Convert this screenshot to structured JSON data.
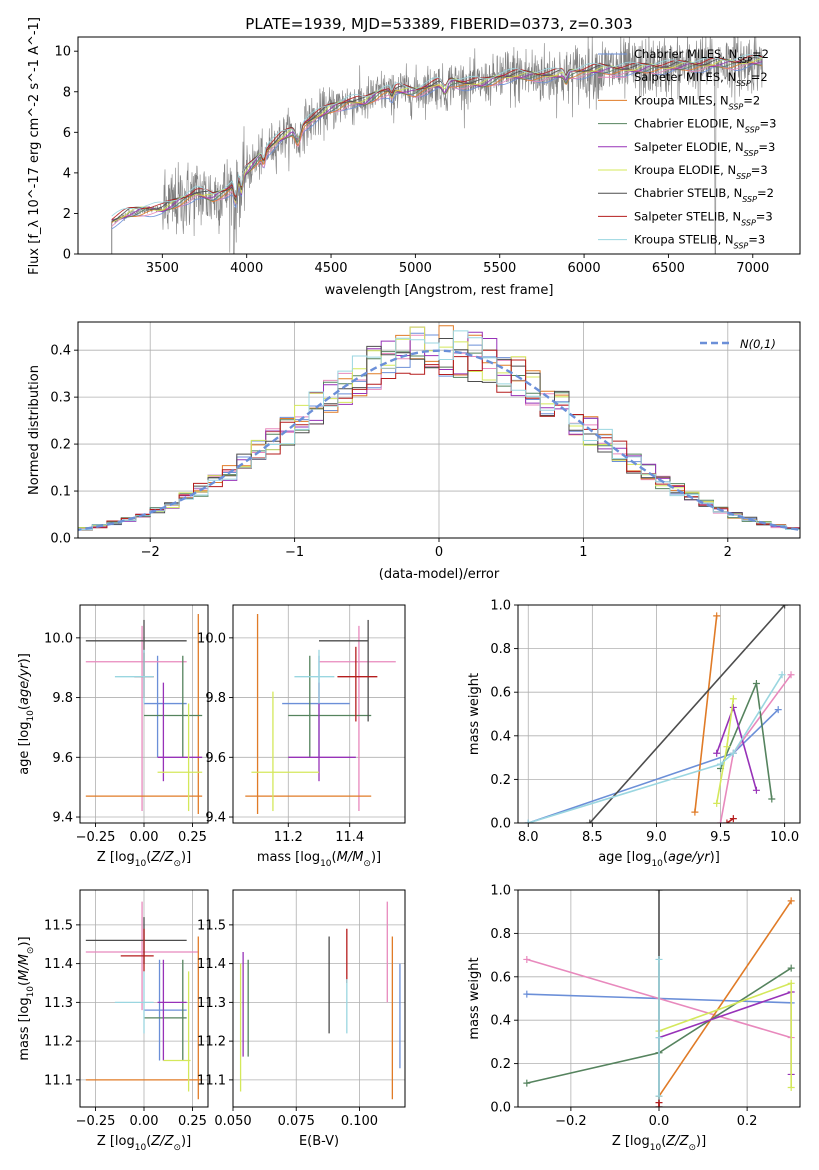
{
  "palette": {
    "chabrier_miles": "#6b8fd8",
    "salpeter_miles": "#e889bd",
    "kroupa_miles": "#e07b27",
    "chabrier_elodie": "#55835e",
    "salpeter_elodie": "#9732b8",
    "kroupa_elodie": "#d4e85b",
    "chabrier_stelib": "#4d4d4d",
    "salpeter_stelib": "#b51d1d",
    "kroupa_stelib": "#9ad6e0",
    "grid": "#b0b0b0",
    "spectrum": "#808080"
  },
  "chart_data": [
    {
      "id": "spectrum",
      "type": "line",
      "title": "PLATE=1939, MJD=53389, FIBERID=0373, z=0.303",
      "xlabel": "wavelength [Angstrom, rest frame]",
      "ylabel": "Flux [f_λ 10^-17 erg cm^-2 s^-1 A^-1]",
      "xlim": [
        3000,
        7280
      ],
      "ylim": [
        0,
        10.7
      ],
      "xticks": [
        3500,
        4000,
        4500,
        5000,
        5500,
        6000,
        6500,
        7000
      ],
      "yticks": [
        0,
        2,
        4,
        6,
        8,
        10
      ],
      "grid": false,
      "legend_position": "top-right",
      "legend": [
        {
          "label": "Chabrier MILES, N",
          "sub": "SSP",
          "suffix": "=2"
        },
        {
          "label": "Salpeter MILES, N",
          "sub": "SSP",
          "suffix": "=2"
        },
        {
          "label": "Kroupa MILES, N",
          "sub": "SSP",
          "suffix": "=2"
        },
        {
          "label": "Chabrier ELODIE, N",
          "sub": "SSP",
          "suffix": "=3"
        },
        {
          "label": "Salpeter ELODIE, N",
          "sub": "SSP",
          "suffix": "=3"
        },
        {
          "label": "Kroupa ELODIE, N",
          "sub": "SSP",
          "suffix": "=3"
        },
        {
          "label": "Chabrier STELIB, N",
          "sub": "SSP",
          "suffix": "=2"
        },
        {
          "label": "Salpeter STELIB, N",
          "sub": "SSP",
          "suffix": "=3"
        },
        {
          "label": "Kroupa STELIB, N",
          "sub": "SSP",
          "suffix": "=3"
        }
      ],
      "continuum_knots": {
        "x": [
          3200,
          3300,
          3400,
          3500,
          3600,
          3700,
          3800,
          3900,
          4000,
          4100,
          4200,
          4300,
          4400,
          4500,
          4600,
          4700,
          4800,
          4900,
          5000,
          5100,
          5200,
          5300,
          5400,
          5500,
          5600,
          5700,
          5800,
          5900,
          6000,
          6100,
          6200,
          6300,
          6400,
          6500,
          6600,
          6700,
          6800,
          6900,
          7000,
          7060
        ],
        "y": [
          1.6,
          2.0,
          2.2,
          2.2,
          2.6,
          3.0,
          2.8,
          3.2,
          4.1,
          5.0,
          5.7,
          6.2,
          6.7,
          7.2,
          7.5,
          7.5,
          8.0,
          8.1,
          8.0,
          8.3,
          8.5,
          8.4,
          8.4,
          8.7,
          8.8,
          8.8,
          8.8,
          8.9,
          9.0,
          9.1,
          9.1,
          9.1,
          9.2,
          9.2,
          9.3,
          9.3,
          9.4,
          9.4,
          9.5,
          9.5
        ]
      }
    },
    {
      "id": "residuals",
      "type": "histogram",
      "xlabel": "(data-model)/error",
      "ylabel": "Normed distribution",
      "xlim": [
        -2.5,
        2.5
      ],
      "ylim": [
        0,
        0.46
      ],
      "xticks": [
        -2,
        -1,
        0,
        1,
        2
      ],
      "yticks": [
        0.0,
        0.1,
        0.2,
        0.3,
        0.4
      ],
      "grid": true,
      "bin_width": 0.1,
      "legend_position": "top-right",
      "reference_curve": {
        "label": "N(0,1)",
        "type": "gaussian",
        "mean": 0,
        "sigma": 1
      }
    },
    {
      "id": "age_vs_Z",
      "type": "errorbar",
      "xlabel": "Z [log10(Z/Z⊙)]",
      "ylabel": "age [log10(age/yr)]",
      "xlim": [
        -0.33,
        0.33
      ],
      "ylim": [
        9.38,
        10.11
      ],
      "xticks": [
        -0.25,
        0.0,
        0.25
      ],
      "xticklabels": [
        "−0.25",
        "0.00",
        "0.25"
      ],
      "yticks": [
        9.4,
        9.6,
        9.8,
        10.0
      ],
      "grid": true,
      "points": [
        {
          "model": "chabrier_miles",
          "x": 0.07,
          "xlo": 0.0,
          "xhi": 0.22,
          "y": 9.78,
          "ylo": 9.6,
          "yhi": 9.94
        },
        {
          "model": "salpeter_miles",
          "x": -0.01,
          "xlo": -0.3,
          "xhi": 0.22,
          "y": 9.92,
          "ylo": 9.42,
          "yhi": 10.04
        },
        {
          "model": "kroupa_miles",
          "x": 0.28,
          "xlo": -0.3,
          "xhi": 0.3,
          "y": 9.47,
          "ylo": 9.41,
          "yhi": 10.08
        },
        {
          "model": "chabrier_elodie",
          "x": 0.2,
          "xlo": 0.0,
          "xhi": 0.3,
          "y": 9.74,
          "ylo": 9.6,
          "yhi": 9.94
        },
        {
          "model": "salpeter_elodie",
          "x": 0.1,
          "xlo": 0.07,
          "xhi": 0.3,
          "y": 9.6,
          "ylo": 9.52,
          "yhi": 9.85
        },
        {
          "model": "kroupa_elodie",
          "x": 0.23,
          "xlo": 0.07,
          "xhi": 0.3,
          "y": 9.55,
          "ylo": 9.42,
          "yhi": 9.78
        },
        {
          "model": "chabrier_stelib",
          "x": 0.0,
          "xlo": -0.3,
          "xhi": 0.22,
          "y": 9.99,
          "ylo": 9.87,
          "yhi": 10.06
        },
        {
          "model": "salpeter_stelib",
          "x": 0.0,
          "xlo": -0.05,
          "xhi": 0.05,
          "y": 9.87,
          "ylo": 9.8,
          "yhi": 9.95
        },
        {
          "model": "kroupa_stelib",
          "x": 0.0,
          "xlo": -0.15,
          "xhi": 0.05,
          "y": 9.87,
          "ylo": 9.78,
          "yhi": 9.96
        }
      ]
    },
    {
      "id": "age_vs_mass",
      "type": "errorbar",
      "xlabel": "mass [log10(M/M⊙)]",
      "xlim": [
        11.02,
        11.58
      ],
      "ylim": [
        9.38,
        10.11
      ],
      "xticks": [
        11.2,
        11.4
      ],
      "yticks": [
        9.4,
        9.6,
        9.8,
        10.0
      ],
      "grid": true,
      "points": [
        {
          "model": "chabrier_miles",
          "x": 11.3,
          "xlo": 11.18,
          "xhi": 11.4,
          "y": 9.78,
          "ylo": 9.6,
          "yhi": 9.94
        },
        {
          "model": "salpeter_miles",
          "x": 11.43,
          "xlo": 11.3,
          "xhi": 11.55,
          "y": 9.92,
          "ylo": 9.42,
          "yhi": 10.04
        },
        {
          "model": "kroupa_miles",
          "x": 11.1,
          "xlo": 11.06,
          "xhi": 11.47,
          "y": 9.47,
          "ylo": 9.41,
          "yhi": 10.08
        },
        {
          "model": "chabrier_elodie",
          "x": 11.27,
          "xlo": 11.2,
          "xhi": 11.47,
          "y": 9.74,
          "ylo": 9.6,
          "yhi": 9.94
        },
        {
          "model": "salpeter_elodie",
          "x": 11.3,
          "xlo": 11.2,
          "xhi": 11.42,
          "y": 9.6,
          "ylo": 9.52,
          "yhi": 9.85
        },
        {
          "model": "kroupa_elodie",
          "x": 11.15,
          "xlo": 11.08,
          "xhi": 11.3,
          "y": 9.55,
          "ylo": 9.42,
          "yhi": 9.82
        },
        {
          "model": "chabrier_stelib",
          "x": 11.46,
          "xlo": 11.3,
          "xhi": 11.46,
          "y": 9.99,
          "ylo": 9.72,
          "yhi": 10.06
        },
        {
          "model": "salpeter_stelib",
          "x": 11.42,
          "xlo": 11.36,
          "xhi": 11.49,
          "y": 9.87,
          "ylo": 9.72,
          "yhi": 9.97
        },
        {
          "model": "kroupa_stelib",
          "x": 11.3,
          "xlo": 11.22,
          "xhi": 11.35,
          "y": 9.87,
          "ylo": 9.78,
          "yhi": 9.96
        }
      ]
    },
    {
      "id": "massweight_vs_age",
      "type": "line",
      "xlabel": "age [log10(age/yr)]",
      "ylabel": "mass weight",
      "xlim": [
        7.92,
        10.12
      ],
      "ylim": [
        0.0,
        1.0
      ],
      "xticks": [
        8.0,
        8.5,
        9.0,
        9.5,
        10.0
      ],
      "yticks": [
        0.0,
        0.2,
        0.4,
        0.6,
        0.8,
        1.0
      ],
      "grid": true,
      "series": [
        {
          "model": "chabrier_miles",
          "x": [
            8.0,
            9.6,
            9.95
          ],
          "y": [
            0.0,
            0.32,
            0.52
          ]
        },
        {
          "model": "salpeter_miles",
          "x": [
            9.5,
            9.6,
            10.05
          ],
          "y": [
            0.0,
            0.32,
            0.68
          ]
        },
        {
          "model": "kroupa_miles",
          "x": [
            9.3,
            9.47
          ],
          "y": [
            0.05,
            0.95
          ]
        },
        {
          "model": "chabrier_elodie",
          "x": [
            9.5,
            9.78,
            9.9
          ],
          "y": [
            0.25,
            0.64,
            0.11
          ]
        },
        {
          "model": "salpeter_elodie",
          "x": [
            9.47,
            9.6,
            9.78
          ],
          "y": [
            0.32,
            0.53,
            0.15
          ]
        },
        {
          "model": "kroupa_elodie",
          "x": [
            9.47,
            9.55,
            9.6
          ],
          "y": [
            0.09,
            0.35,
            0.57
          ]
        },
        {
          "model": "chabrier_stelib",
          "x": [
            8.48,
            10.0
          ],
          "y": [
            0.0,
            1.0
          ]
        },
        {
          "model": "salpeter_stelib",
          "x": [
            9.55,
            9.6
          ],
          "y": [
            0.0,
            0.02
          ]
        },
        {
          "model": "kroupa_stelib",
          "x": [
            8.0,
            9.5,
            9.6,
            9.98
          ],
          "y": [
            0.0,
            0.27,
            0.32,
            0.68
          ]
        }
      ]
    },
    {
      "id": "mass_vs_Z",
      "type": "errorbar",
      "xlabel": "Z [log10(Z/Z⊙)]",
      "ylabel": "mass [log10(M/M⊙)]",
      "xlim": [
        -0.33,
        0.33
      ],
      "ylim": [
        11.03,
        11.59
      ],
      "xticks": [
        -0.25,
        0.0,
        0.25
      ],
      "xticklabels": [
        "−0.25",
        "0.00",
        "0.25"
      ],
      "yticks": [
        11.1,
        11.2,
        11.3,
        11.4,
        11.5
      ],
      "grid": true,
      "points": [
        {
          "model": "chabrier_miles",
          "x": 0.08,
          "xlo": 0.0,
          "xhi": 0.22,
          "y": 11.28,
          "ylo": 11.15,
          "yhi": 11.41
        },
        {
          "model": "salpeter_miles",
          "x": -0.01,
          "xlo": -0.3,
          "xhi": 0.28,
          "y": 11.43,
          "ylo": 11.28,
          "yhi": 11.56
        },
        {
          "model": "kroupa_miles",
          "x": 0.28,
          "xlo": -0.3,
          "xhi": 0.3,
          "y": 11.1,
          "ylo": 11.05,
          "yhi": 11.47
        },
        {
          "model": "chabrier_elodie",
          "x": 0.2,
          "xlo": 0.0,
          "xhi": 0.22,
          "y": 11.26,
          "ylo": 11.15,
          "yhi": 11.41
        },
        {
          "model": "salpeter_elodie",
          "x": 0.1,
          "xlo": 0.07,
          "xhi": 0.22,
          "y": 11.3,
          "ylo": 11.15,
          "yhi": 11.41
        },
        {
          "model": "kroupa_elodie",
          "x": 0.23,
          "xlo": 0.1,
          "xhi": 0.24,
          "y": 11.15,
          "ylo": 11.07,
          "yhi": 11.38
        },
        {
          "model": "chabrier_stelib",
          "x": 0.0,
          "xlo": -0.3,
          "xhi": 0.22,
          "y": 11.46,
          "ylo": 11.4,
          "yhi": 11.52
        },
        {
          "model": "salpeter_stelib",
          "x": 0.0,
          "xlo": -0.12,
          "xhi": 0.05,
          "y": 11.42,
          "ylo": 11.38,
          "yhi": 11.49
        },
        {
          "model": "kroupa_stelib",
          "x": 0.0,
          "xlo": -0.15,
          "xhi": 0.05,
          "y": 11.3,
          "ylo": 11.22,
          "yhi": 11.38
        }
      ]
    },
    {
      "id": "mass_vs_ebv",
      "type": "errorbar",
      "xlabel": "E(B-V)",
      "xlim": [
        0.05,
        0.118
      ],
      "ylim": [
        11.03,
        11.59
      ],
      "xticks": [
        0.05,
        0.075,
        0.1
      ],
      "xticklabels": [
        "0.050",
        "0.075",
        "0.100"
      ],
      "yticks": [
        11.1,
        11.2,
        11.3,
        11.4,
        11.5
      ],
      "grid": true,
      "points": [
        {
          "model": "chabrier_miles",
          "x": 0.116,
          "y": 11.27,
          "ylo": 11.13,
          "yhi": 11.4
        },
        {
          "model": "salpeter_miles",
          "x": 0.111,
          "y": 11.43,
          "ylo": 11.3,
          "yhi": 11.56
        },
        {
          "model": "kroupa_miles",
          "x": 0.113,
          "y": 11.1,
          "ylo": 11.05,
          "yhi": 11.47
        },
        {
          "model": "chabrier_elodie",
          "x": 0.056,
          "y": 11.26,
          "ylo": 11.16,
          "yhi": 11.41
        },
        {
          "model": "salpeter_elodie",
          "x": 0.054,
          "y": 11.3,
          "ylo": 11.16,
          "yhi": 11.43
        },
        {
          "model": "kroupa_elodie",
          "x": 0.053,
          "y": 11.15,
          "ylo": 11.07,
          "yhi": 11.4
        },
        {
          "model": "chabrier_stelib",
          "x": 0.088,
          "y": 11.33,
          "ylo": 11.22,
          "yhi": 11.47
        },
        {
          "model": "salpeter_stelib",
          "x": 0.095,
          "y": 11.42,
          "ylo": 11.35,
          "yhi": 11.49
        },
        {
          "model": "kroupa_stelib",
          "x": 0.095,
          "y": 11.3,
          "ylo": 11.22,
          "yhi": 11.36
        }
      ]
    },
    {
      "id": "massweight_vs_Z",
      "type": "line",
      "xlabel": "Z [log10(Z/Z⊙)]",
      "ylabel": "mass weight",
      "xlim": [
        -0.32,
        0.32
      ],
      "ylim": [
        0.0,
        1.0
      ],
      "xticks": [
        -0.2,
        0.0,
        0.2
      ],
      "xticklabels": [
        "−0.2",
        "0.0",
        "0.2"
      ],
      "yticks": [
        0.0,
        0.2,
        0.4,
        0.6,
        0.8,
        1.0
      ],
      "grid": true,
      "series": [
        {
          "model": "chabrier_miles",
          "x": [
            -0.3,
            0.3
          ],
          "y": [
            0.52,
            0.48
          ]
        },
        {
          "model": "salpeter_miles",
          "x": [
            -0.3,
            0.3
          ],
          "y": [
            0.68,
            0.32
          ]
        },
        {
          "model": "kroupa_miles",
          "x": [
            0.0,
            0.3
          ],
          "y": [
            0.05,
            0.95
          ]
        },
        {
          "model": "chabrier_elodie",
          "x": [
            -0.3,
            0.0,
            0.3
          ],
          "y": [
            0.11,
            0.25,
            0.64
          ]
        },
        {
          "model": "salpeter_elodie",
          "x": [
            0.0,
            0.3,
            0.3
          ],
          "y": [
            0.32,
            0.53,
            0.15
          ]
        },
        {
          "model": "kroupa_elodie",
          "x": [
            0.0,
            0.3,
            0.3
          ],
          "y": [
            0.35,
            0.57,
            0.09
          ]
        },
        {
          "model": "chabrier_stelib",
          "x": [
            0.0,
            0.0
          ],
          "y": [
            0.0,
            1.0
          ]
        },
        {
          "model": "salpeter_stelib",
          "x": [
            0.0,
            0.0
          ],
          "y": [
            0.0,
            0.02
          ]
        },
        {
          "model": "kroupa_stelib",
          "x": [
            0.0,
            0.0,
            0.0
          ],
          "y": [
            0.05,
            0.32,
            0.68
          ]
        }
      ]
    }
  ]
}
